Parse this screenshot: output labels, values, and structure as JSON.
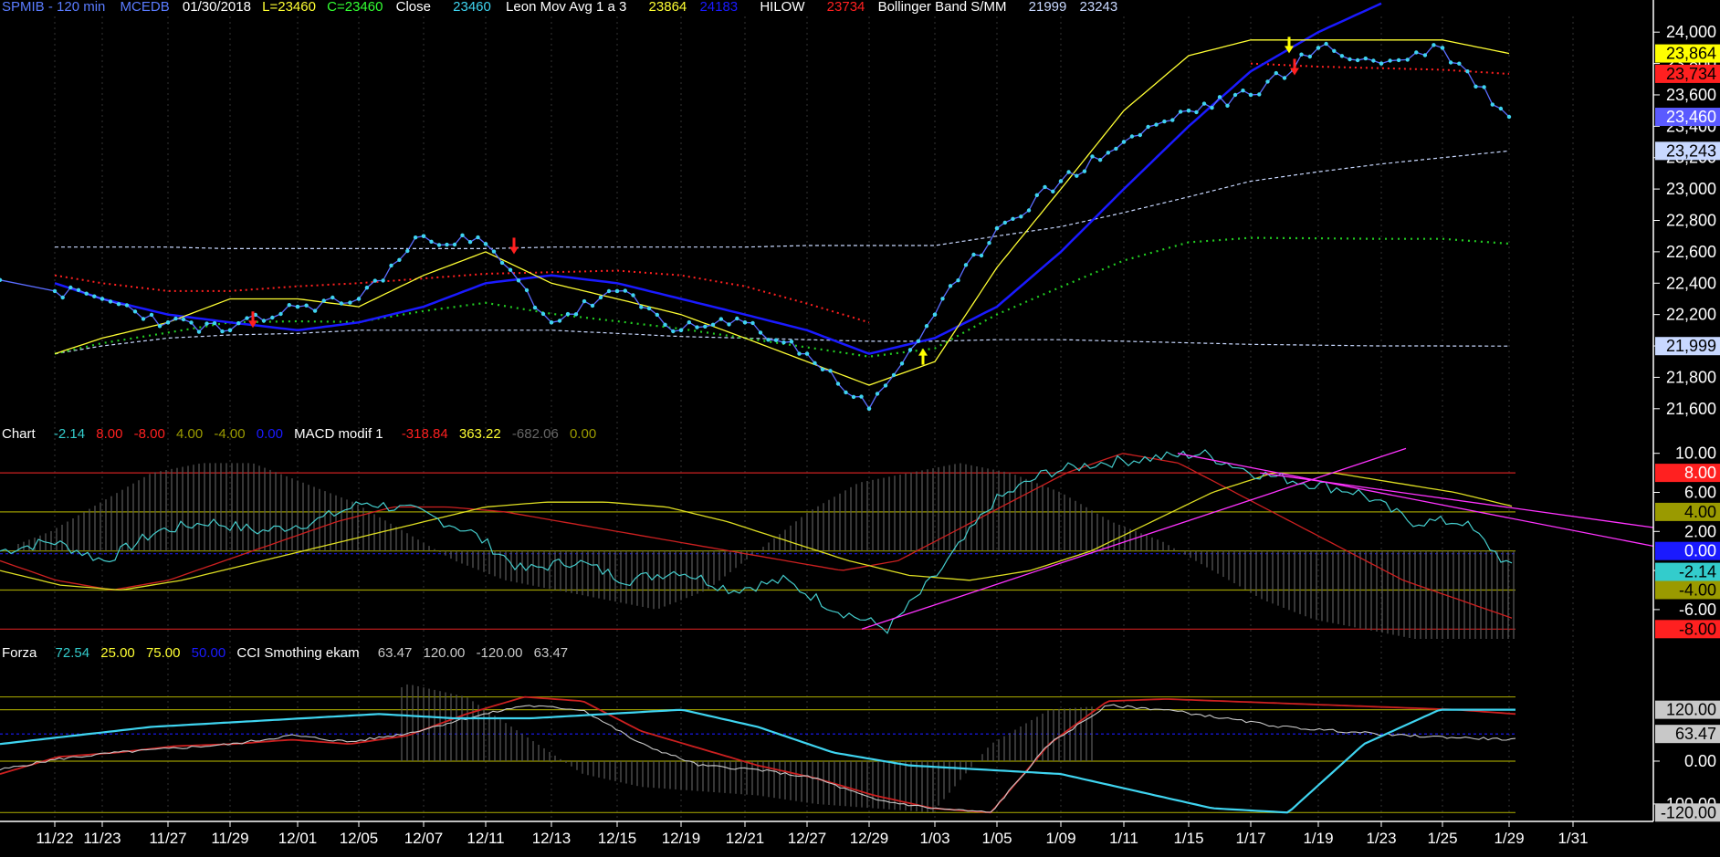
{
  "header": {
    "symbol": "SPMIB - 120 min",
    "source": "MCEDB",
    "date": "01/30/2018",
    "low": "L=23460",
    "close_eq": "C=23460",
    "close_label": "Close",
    "close_value": "23460",
    "leon_label": "Leon Mov Avg 1 a 3",
    "leon_v1": "23864",
    "leon_v2": "24183",
    "hilow_label": "HILOW",
    "hilow_value": "23734",
    "boll_label": "Bollinger Band S/MM",
    "boll_v1": "21999",
    "boll_v2": "23243"
  },
  "panel2_header": {
    "label": "Chart",
    "v1": "-2.14",
    "v2": "8.00",
    "v3": "-8.00",
    "v4": "4.00",
    "v5": "-4.00",
    "v6": "0.00",
    "macd_label": "MACD modif 1",
    "m1": "-318.84",
    "m2": "363.22",
    "m3": "-682.06",
    "m4": "0.00"
  },
  "panel3_header": {
    "label": "Forza",
    "v1": "72.54",
    "v2": "25.00",
    "v3": "75.00",
    "v4": "50.00",
    "cci_label": "CCI Smothing ekam",
    "c1": "63.47",
    "c2": "120.00",
    "c3": "-120.00",
    "c4": "63.47"
  },
  "colors": {
    "background": "#000000",
    "price": "#3fd4f0",
    "leon_avg": "#ffff33",
    "blue_avg": "#1a1aff",
    "hilow": "#ff2020",
    "green_dots": "#22cc22",
    "boll": "#c8d8ff",
    "magenta": "#ff33ff"
  },
  "chart_data": [
    {
      "type": "line",
      "name": "price",
      "x": [
        "11/22",
        "11/23",
        "11/27",
        "11/29",
        "12/01",
        "12/05",
        "12/07",
        "12/11",
        "12/13",
        "12/15",
        "12/19",
        "12/21",
        "12/27",
        "12/29",
        "1/03",
        "1/05",
        "1/09",
        "1/11",
        "1/15",
        "1/17",
        "1/19",
        "1/23",
        "1/25",
        "1/29",
        "1/31"
      ],
      "series": [
        {
          "name": "Close",
          "values": [
            22350,
            22300,
            22150,
            22100,
            22250,
            22300,
            22700,
            22650,
            22150,
            22350,
            22100,
            22150,
            21950,
            21600,
            22200,
            22750,
            23050,
            23300,
            23500,
            23600,
            23900,
            23800,
            23900,
            23460,
            null
          ]
        },
        {
          "name": "Leon Mov Avg 1 a 3",
          "values": [
            21950,
            22050,
            22150,
            22300,
            22300,
            22250,
            22450,
            22600,
            22400,
            22300,
            22200,
            22050,
            21900,
            21750,
            21900,
            22500,
            23000,
            23500,
            23850,
            23950,
            23950,
            23950,
            23950,
            23864,
            null
          ]
        },
        {
          "name": "Leon Mov Avg 1 a 3 (2)",
          "values": [
            22400,
            22300,
            22200,
            22150,
            22100,
            22150,
            22250,
            22400,
            22450,
            22400,
            22300,
            22200,
            22100,
            21950,
            22050,
            22250,
            22600,
            23000,
            23400,
            23750,
            24000,
            24183,
            null,
            null,
            null
          ]
        },
        {
          "name": "HILOW",
          "values": [
            22450,
            22400,
            22350,
            22350,
            22380,
            22400,
            22430,
            22460,
            22470,
            22480,
            22450,
            22380,
            22270,
            22150,
            null,
            null,
            null,
            null,
            null,
            23800,
            23780,
            23770,
            23760,
            23734,
            null
          ]
        },
        {
          "name": "Bollinger Band S/MM (1)",
          "values": [
            21950,
            22000,
            22050,
            22070,
            22080,
            22100,
            22100,
            22100,
            22100,
            22080,
            22060,
            22050,
            22040,
            22030,
            22030,
            22040,
            22040,
            22030,
            22020,
            22010,
            22005,
            22000,
            22000,
            21999,
            null
          ]
        },
        {
          "name": "Bollinger Band S/MM (2)",
          "values": [
            22630,
            22630,
            22630,
            22620,
            22620,
            22620,
            22620,
            22620,
            22630,
            22630,
            22630,
            22630,
            22640,
            22640,
            22640,
            22700,
            22760,
            22850,
            22950,
            23050,
            23110,
            23160,
            23200,
            23243,
            null
          ]
        }
      ],
      "y_ticks": [
        "24,000",
        "23,800",
        "23,600",
        "23,400",
        "23,200",
        "23,000",
        "22,800",
        "22,600",
        "22,400",
        "22,200",
        "22,000",
        "21,800",
        "21,600"
      ],
      "ylim": [
        21500,
        24100
      ],
      "price_tags": [
        {
          "label": "23,864",
          "bg": "#ffff00",
          "fg": "#000000",
          "v": 23864
        },
        {
          "label": "23,734",
          "bg": "#ff2020",
          "fg": "#000000",
          "v": 23734
        },
        {
          "label": "23,460",
          "bg": "#5a5aff",
          "fg": "#ffffff",
          "v": 23460
        },
        {
          "label": "23,243",
          "bg": "#c8d8ff",
          "fg": "#000000",
          "v": 23243
        },
        {
          "label": "21,999",
          "bg": "#c8d8ff",
          "fg": "#000000",
          "v": 21999
        }
      ]
    },
    {
      "type": "line",
      "name": "macd-panel",
      "y_ticks": [
        "10.00",
        "6.00",
        "2.00",
        "-2.00",
        "-6.00"
      ],
      "ylim": [
        -9,
        11
      ],
      "hlines": [
        8,
        4,
        0,
        -4,
        -8
      ],
      "value_tags": [
        {
          "label": "8.00",
          "bg": "#ff2020",
          "fg": "#ffffff",
          "v": 8
        },
        {
          "label": "4.00",
          "bg": "#9a9a00",
          "fg": "#000000",
          "v": 4
        },
        {
          "label": "0.00",
          "bg": "#1a1aff",
          "fg": "#ffffff",
          "v": 0
        },
        {
          "label": "-2.14",
          "bg": "#33cccc",
          "fg": "#000000",
          "v": -2.14
        },
        {
          "label": "-4.00",
          "bg": "#9a9a00",
          "fg": "#000000",
          "v": -4
        },
        {
          "label": "-8.00",
          "bg": "#ff2020",
          "fg": "#000000",
          "v": -8
        }
      ]
    },
    {
      "type": "line",
      "name": "cci-panel",
      "y_ticks": [
        "0.00",
        "-100.00"
      ],
      "ylim": [
        -130,
        230
      ],
      "value_tags": [
        {
          "label": "120.00",
          "bg": "#c8c8c8",
          "fg": "#000000",
          "v": 120
        },
        {
          "label": "63.47",
          "bg": "#c8c8c8",
          "fg": "#000000",
          "v": 63.47
        },
        {
          "label": "-120.00",
          "bg": "#c8c8c8",
          "fg": "#000000",
          "v": -120
        }
      ]
    }
  ]
}
